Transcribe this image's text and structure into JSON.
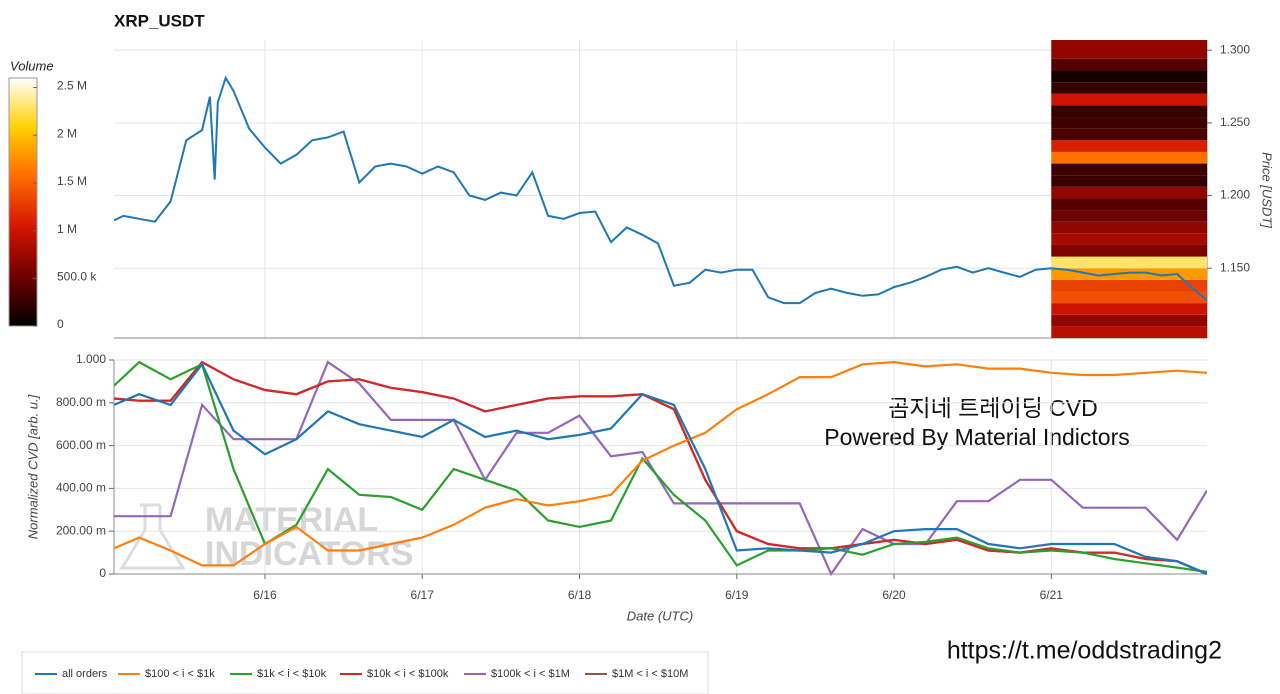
{
  "chart_data": [
    {
      "type": "line",
      "title": "XRP_USDT",
      "y_label": "Price [USDT]",
      "x": [
        15.04,
        15.1,
        15.2,
        15.3,
        15.4,
        15.5,
        15.6,
        15.65,
        15.68,
        15.7,
        15.75,
        15.8,
        15.9,
        16.0,
        16.1,
        16.2,
        16.3,
        16.4,
        16.5,
        16.6,
        16.7,
        16.8,
        16.9,
        17.0,
        17.1,
        17.2,
        17.3,
        17.4,
        17.5,
        17.6,
        17.7,
        17.8,
        17.9,
        18.0,
        18.1,
        18.2,
        18.3,
        18.4,
        18.5,
        18.6,
        18.7,
        18.8,
        18.9,
        19.0,
        19.1,
        19.2,
        19.3,
        19.4,
        19.5,
        19.6,
        19.7,
        19.8,
        19.9,
        20.0,
        20.1,
        20.2,
        20.3,
        20.4,
        20.5,
        20.6,
        20.7,
        20.8,
        20.9,
        21.0,
        21.1,
        21.2,
        21.3,
        21.4,
        21.5,
        21.6,
        21.7,
        21.8,
        21.9,
        21.99
      ],
      "values": [
        1.183,
        1.186,
        1.184,
        1.182,
        1.196,
        1.238,
        1.245,
        1.268,
        1.211,
        1.264,
        1.281,
        1.272,
        1.246,
        1.233,
        1.222,
        1.228,
        1.238,
        1.24,
        1.244,
        1.209,
        1.22,
        1.222,
        1.22,
        1.215,
        1.22,
        1.216,
        1.2,
        1.197,
        1.202,
        1.2,
        1.216,
        1.186,
        1.184,
        1.188,
        1.189,
        1.168,
        1.178,
        1.173,
        1.167,
        1.138,
        1.14,
        1.149,
        1.147,
        1.149,
        1.149,
        1.13,
        1.126,
        1.126,
        1.133,
        1.136,
        1.133,
        1.131,
        1.132,
        1.137,
        1.14,
        1.144,
        1.149,
        1.151,
        1.147,
        1.15,
        1.147,
        1.144,
        1.149,
        1.15,
        1.149,
        1.147,
        1.145,
        1.146,
        1.147,
        1.147,
        1.145,
        1.146,
        1.136,
        1.128
      ],
      "color": "#1f77b4",
      "xlim": [
        15.04,
        21.99
      ],
      "xticks": [
        16,
        17,
        18,
        19,
        20,
        21
      ],
      "ylim": [
        1.102,
        1.307
      ],
      "yticks": [
        {
          "value": 1.15,
          "label": "1.150"
        },
        {
          "value": 1.2,
          "label": "1.200"
        },
        {
          "value": 1.25,
          "label": "1.250"
        },
        {
          "value": 1.3,
          "label": "1.300"
        }
      ],
      "grid": true,
      "heatmap": {
        "xrange": [
          21.0,
          21.99
        ],
        "price_bins": [
          1.102,
          1.11,
          1.118,
          1.126,
          1.134,
          1.142,
          1.15,
          1.158,
          1.166,
          1.174,
          1.182,
          1.19,
          1.198,
          1.206,
          1.214,
          1.222,
          1.23,
          1.238,
          1.246,
          1.254,
          1.262,
          1.27,
          1.278,
          1.286,
          1.294,
          1.307
        ],
        "volumes": [
          900000,
          700000,
          1000000,
          1400000,
          1300000,
          1800000,
          2300000,
          600000,
          800000,
          700000,
          500000,
          400000,
          700000,
          250000,
          300000,
          1600000,
          1100000,
          350000,
          300000,
          250000,
          1000000,
          250000,
          100000,
          400000,
          700000
        ]
      },
      "colorbar": {
        "label": "Volume",
        "lim": [
          0,
          2600000
        ],
        "ticks": [
          0,
          {
            "value": 500000,
            "label": "500.0 k"
          },
          {
            "value": 1000000,
            "label": "1 M"
          },
          {
            "value": 1500000,
            "label": "1.5 M"
          },
          {
            "value": 2000000,
            "label": "2 M"
          },
          {
            "value": 2500000,
            "label": "2.5 M"
          }
        ],
        "colormap": [
          "#000000",
          "#6e0000",
          "#d41500",
          "#ff6a00",
          "#ffd000",
          "#ffffff"
        ]
      }
    },
    {
      "type": "line",
      "x_label": "Date (UTC)",
      "y_label": "Normalized CVD [arb. u.]",
      "x": [
        15.04,
        15.2,
        15.4,
        15.6,
        15.8,
        16.0,
        16.2,
        16.4,
        16.6,
        16.8,
        17.0,
        17.2,
        17.4,
        17.6,
        17.8,
        18.0,
        18.2,
        18.4,
        18.6,
        18.8,
        19.0,
        19.2,
        19.4,
        19.6,
        19.8,
        20.0,
        20.2,
        20.4,
        20.6,
        20.8,
        21.0,
        21.2,
        21.4,
        21.6,
        21.8,
        21.99
      ],
      "series": [
        {
          "name": "all orders",
          "color": "#1f77b4",
          "values": [
            0.79,
            0.84,
            0.79,
            0.98,
            0.67,
            0.56,
            0.63,
            0.76,
            0.7,
            0.67,
            0.64,
            0.72,
            0.64,
            0.67,
            0.63,
            0.65,
            0.68,
            0.84,
            0.79,
            0.49,
            0.11,
            0.12,
            0.11,
            0.1,
            0.14,
            0.2,
            0.21,
            0.21,
            0.14,
            0.12,
            0.14,
            0.14,
            0.14,
            0.08,
            0.06,
            0.0
          ]
        },
        {
          "name": "$100 < i < $1k",
          "color": "#ff7f0e",
          "values": [
            0.12,
            0.17,
            0.11,
            0.04,
            0.04,
            0.14,
            0.22,
            0.11,
            0.11,
            0.14,
            0.17,
            0.23,
            0.31,
            0.35,
            0.32,
            0.34,
            0.37,
            0.53,
            0.6,
            0.66,
            0.77,
            0.84,
            0.92,
            0.92,
            0.98,
            0.99,
            0.97,
            0.98,
            0.96,
            0.96,
            0.94,
            0.93,
            0.93,
            0.94,
            0.95,
            0.94
          ]
        },
        {
          "name": "$1k < i < $10k",
          "color": "#2ca02c",
          "values": [
            0.88,
            0.99,
            0.91,
            0.98,
            0.49,
            0.14,
            0.23,
            0.49,
            0.37,
            0.36,
            0.3,
            0.49,
            0.44,
            0.39,
            0.25,
            0.22,
            0.25,
            0.54,
            0.37,
            0.25,
            0.04,
            0.11,
            0.11,
            0.12,
            0.09,
            0.14,
            0.15,
            0.17,
            0.12,
            0.1,
            0.11,
            0.1,
            0.07,
            0.05,
            0.03,
            0.01
          ]
        },
        {
          "name": "$10k < i < $100k",
          "color": "#d62728",
          "values": [
            0.82,
            0.81,
            0.81,
            0.99,
            0.91,
            0.86,
            0.84,
            0.9,
            0.91,
            0.87,
            0.85,
            0.82,
            0.76,
            0.79,
            0.82,
            0.83,
            0.83,
            0.84,
            0.77,
            0.44,
            0.2,
            0.14,
            0.12,
            0.12,
            0.14,
            0.16,
            0.14,
            0.16,
            0.11,
            0.1,
            0.12,
            0.1,
            0.1,
            0.07,
            0.06,
            0.0
          ]
        },
        {
          "name": "$100k < i < $1M",
          "color": "#9467bd",
          "values": [
            0.27,
            0.27,
            0.27,
            0.79,
            0.63,
            0.63,
            0.63,
            0.99,
            0.89,
            0.72,
            0.72,
            0.72,
            0.44,
            0.66,
            0.66,
            0.74,
            0.55,
            0.57,
            0.33,
            0.33,
            0.33,
            0.33,
            0.33,
            0.0,
            0.21,
            0.14,
            0.14,
            0.34,
            0.34,
            0.44,
            0.44,
            0.31,
            0.31,
            0.31,
            0.16,
            0.39
          ]
        },
        {
          "name": "$1M < i < $10M",
          "color": "#8c564b",
          "values": [
            0.82,
            0.81,
            0.81,
            0.99,
            0.91,
            0.86,
            0.84,
            0.9,
            0.91,
            0.87,
            0.85,
            0.82,
            0.76,
            0.79,
            0.82,
            0.83,
            0.83,
            0.84,
            0.77,
            0.44,
            0.2,
            0.14,
            0.12,
            0.12,
            0.14,
            0.16,
            0.14,
            0.16,
            0.11,
            0.1,
            0.12,
            0.1,
            0.1,
            0.07,
            0.06,
            0.0
          ]
        }
      ],
      "xlim": [
        15.04,
        21.99
      ],
      "xticks": [
        {
          "value": 16,
          "label": "6/16"
        },
        {
          "value": 17,
          "label": "6/17"
        },
        {
          "value": 18,
          "label": "6/18"
        },
        {
          "value": 19,
          "label": "6/19"
        },
        {
          "value": 20,
          "label": "6/20"
        },
        {
          "value": 21,
          "label": "6/21"
        }
      ],
      "ylim": [
        0,
        1
      ],
      "yticks": [
        0,
        {
          "value": 0.2,
          "label": "200.00 m"
        },
        {
          "value": 0.4,
          "label": "400.00 m"
        },
        {
          "value": 0.6,
          "label": "600.00 m"
        },
        {
          "value": 0.8,
          "label": "800.00 m"
        },
        {
          "value": 1,
          "label": "1.000"
        }
      ],
      "grid": true,
      "legend": "bottom-left"
    }
  ],
  "annotations": [
    "곰지네 트레이딩 CVD",
    "Powered By Material Indictors"
  ],
  "watermark": [
    "MATERIAL",
    "INDICATORS"
  ],
  "link": "https://t.me/oddstrading2"
}
